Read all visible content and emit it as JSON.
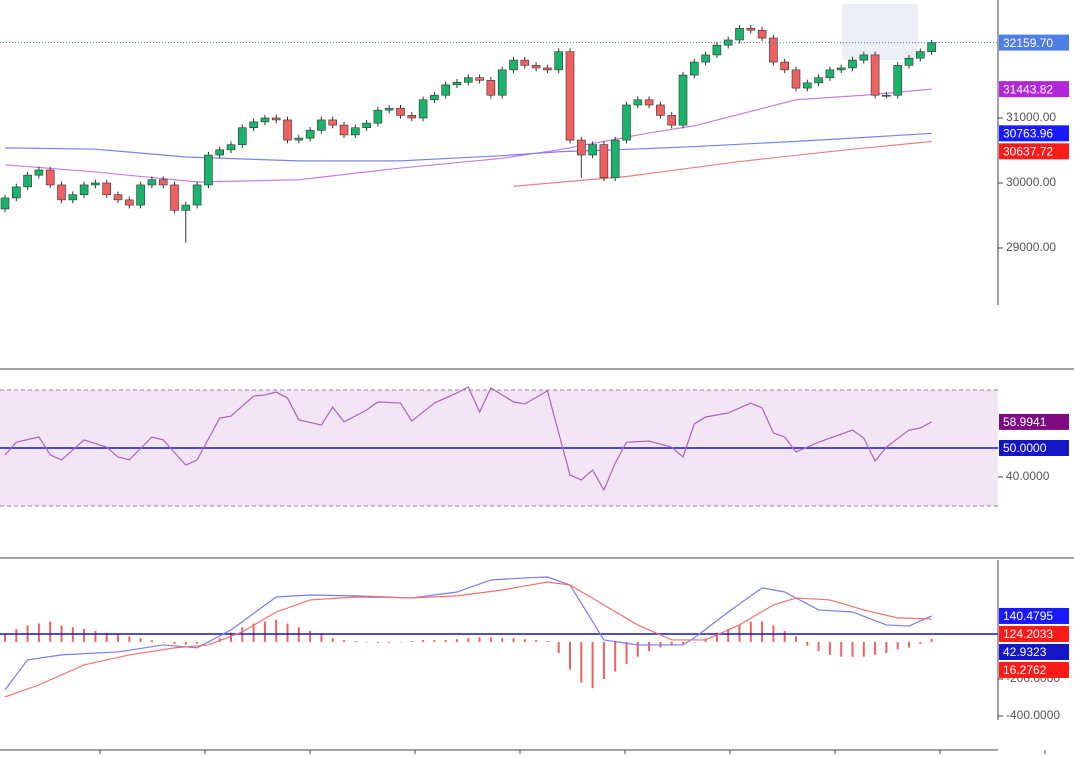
{
  "chart_data": [
    {
      "type": "candlestick",
      "open": [
        29600,
        29770,
        29940,
        30120,
        30200,
        29970,
        29740,
        29820,
        29970,
        30000,
        29820,
        29740,
        29660,
        29970,
        30050,
        29970,
        29580,
        29660,
        29970,
        30430,
        30510,
        30590,
        30850,
        30940,
        31000,
        30970,
        30660,
        30690,
        30810,
        30970,
        30890,
        30740,
        30850,
        30920,
        31120,
        31150,
        31040,
        31000,
        31280,
        31350,
        31510,
        31550,
        31620,
        31580,
        31350,
        31740,
        31890,
        31810,
        31770,
        31740,
        32020,
        30660,
        30430,
        30590,
        30080,
        30660,
        31200,
        31280,
        31200,
        31040,
        30890,
        31660,
        31860,
        31970,
        32120,
        32200,
        32380,
        32350,
        32230,
        31860,
        31740,
        31460,
        31540,
        31620,
        31740,
        31770,
        31890,
        31970,
        31350,
        31350,
        31810,
        31920,
        32020
      ],
      "high": [
        29820,
        29990,
        30170,
        30250,
        30250,
        30020,
        29870,
        30020,
        30050,
        30050,
        29870,
        29790,
        30020,
        30100,
        30100,
        30020,
        29710,
        30020,
        30480,
        30560,
        30640,
        30900,
        30990,
        31050,
        31050,
        31020,
        30740,
        30860,
        31020,
        31020,
        30940,
        30900,
        30970,
        31170,
        31200,
        31200,
        31090,
        31330,
        31400,
        31560,
        31600,
        31670,
        31670,
        31630,
        31790,
        31940,
        31940,
        31860,
        31820,
        32070,
        32070,
        30710,
        30640,
        30640,
        30710,
        31250,
        31330,
        31330,
        31250,
        31090,
        31710,
        31910,
        32020,
        32170,
        32250,
        32430,
        32430,
        32400,
        32280,
        31910,
        31790,
        31590,
        31670,
        31790,
        31820,
        31940,
        32020,
        32020,
        31400,
        31860,
        31970,
        32070,
        32200
      ],
      "low": [
        29550,
        29720,
        29890,
        30070,
        29920,
        29690,
        29690,
        29770,
        29920,
        29770,
        29690,
        29610,
        29610,
        29920,
        29920,
        29530,
        29080,
        29610,
        29920,
        30380,
        30460,
        30540,
        30800,
        30890,
        30920,
        30610,
        30610,
        30640,
        30760,
        30840,
        30690,
        30690,
        30800,
        30870,
        31070,
        30990,
        30950,
        30950,
        31230,
        31300,
        31460,
        31500,
        31530,
        31300,
        31300,
        31690,
        31760,
        31720,
        31690,
        31690,
        30610,
        30080,
        30380,
        30030,
        30030,
        30610,
        31150,
        31150,
        30990,
        30840,
        30840,
        31610,
        31810,
        31920,
        32070,
        32150,
        32300,
        32180,
        31810,
        31690,
        31410,
        31410,
        31490,
        31570,
        31690,
        31720,
        31840,
        31300,
        31300,
        31300,
        31760,
        31870,
        31970
      ],
      "close": [
        29770,
        29940,
        30120,
        30200,
        29970,
        29740,
        29820,
        29970,
        30000,
        29820,
        29740,
        29660,
        29970,
        30050,
        29970,
        29580,
        29660,
        29970,
        30430,
        30510,
        30590,
        30850,
        30940,
        31000,
        30970,
        30660,
        30690,
        30810,
        30970,
        30890,
        30740,
        30850,
        30920,
        31120,
        31150,
        31040,
        31000,
        31280,
        31350,
        31510,
        31550,
        31620,
        31580,
        31350,
        31740,
        31890,
        31810,
        31770,
        31740,
        32020,
        30660,
        30430,
        30590,
        30080,
        30660,
        31200,
        31280,
        31200,
        31040,
        30890,
        31660,
        31860,
        31970,
        32120,
        32200,
        32380,
        32350,
        32230,
        31860,
        31740,
        31460,
        31540,
        31620,
        31740,
        31770,
        31890,
        31970,
        31350,
        31350,
        31810,
        31920,
        32020,
        32159.7
      ],
      "up_color": "#19b36b",
      "down_color": "#ef6060",
      "last_label": "32159.70",
      "last_color": "#4f7fe6",
      "ylim": [
        28123,
        32815
      ],
      "yticks": [
        {
          "value": 31000,
          "label": "31000.00"
        },
        {
          "value": 30000,
          "label": "30000.00"
        },
        {
          "value": 29000,
          "label": "29000.00"
        }
      ],
      "series": [
        {
          "color": "#c77dea",
          "label_color": "#b026d8",
          "x": [
            0,
            8,
            17,
            26,
            35,
            44,
            49,
            57,
            61,
            70,
            76,
            82
          ],
          "values": [
            30280,
            30170,
            30015,
            30050,
            30230,
            30380,
            30510,
            30770,
            30880,
            31280,
            31350,
            31443.82
          ]
        },
        {
          "color": "#8080f0",
          "label_color": "#1a1aff",
          "x": [
            0,
            8,
            16,
            26,
            35,
            44,
            49,
            57,
            61,
            70,
            76,
            82
          ],
          "values": [
            30540,
            30520,
            30400,
            30340,
            30340,
            30420,
            30480,
            30530,
            30560,
            30640,
            30700,
            30763.96
          ]
        },
        {
          "color": "#f08080",
          "label_color": "#ff1a1a",
          "x": [
            45,
            55,
            65,
            75,
            82
          ],
          "values": [
            29950,
            30100,
            30330,
            30520,
            30637.72
          ]
        }
      ]
    },
    {
      "type": "line",
      "color": "#b05fc4",
      "label_color": "#7e0b80",
      "x": [
        0,
        1,
        3,
        4,
        5,
        7,
        9,
        10,
        11,
        13,
        14,
        16,
        17,
        19,
        20,
        22,
        23,
        24,
        25,
        26,
        28,
        29,
        30,
        32,
        33,
        35,
        36,
        38,
        40,
        41,
        42,
        43,
        45,
        46,
        48,
        50,
        51,
        52,
        53,
        54,
        55,
        57,
        59,
        60,
        61,
        62,
        64,
        66,
        67,
        68,
        69,
        70,
        72,
        75,
        76,
        77,
        78,
        80,
        81,
        82
      ],
      "values": [
        47.6,
        52,
        53.8,
        47.6,
        45.9,
        52.8,
        50.3,
        46.9,
        45.9,
        53.8,
        52.8,
        44.1,
        45.9,
        60.3,
        61,
        67.9,
        68.3,
        69.3,
        67.2,
        59.7,
        57.9,
        64.1,
        59,
        63.1,
        65.9,
        65.5,
        59.3,
        65.5,
        69,
        71,
        62.4,
        70.7,
        65.9,
        65.2,
        69.7,
        40.7,
        39,
        42.4,
        35.5,
        44.8,
        52,
        52.4,
        50.3,
        46.9,
        58.3,
        60.7,
        62.1,
        65.5,
        63.8,
        55.2,
        53.8,
        48.6,
        52,
        56.2,
        53.4,
        45.5,
        50.3,
        56.2,
        56.9,
        58.9941
      ],
      "band": [
        30,
        70
      ],
      "band_color": "#f2e6f4",
      "level": {
        "value": 50,
        "label": "50.0000"
      },
      "level_color": "#1515c8",
      "ylim": [
        13.1,
        76.9
      ],
      "yticks": [
        {
          "value": 40,
          "label": "40.0000"
        }
      ]
    },
    {
      "type": "macd",
      "ylim": [
        -584,
        443
      ],
      "yticks": [
        {
          "value": -200,
          "label": "-200.0000"
        },
        {
          "value": -400,
          "label": "-400.0000"
        }
      ],
      "series": [
        {
          "color": "#7b7bf0",
          "label_color": "#1a1aff",
          "x": [
            0,
            2,
            5,
            10,
            14,
            17,
            20,
            24,
            27,
            31,
            36,
            40,
            43,
            46,
            48,
            50,
            53,
            56,
            60,
            61,
            64,
            67,
            69,
            72,
            75,
            78,
            80,
            82
          ],
          "values": [
            -259,
            -97,
            -70,
            -54,
            -16,
            -32,
            65,
            243,
            254,
            249,
            238,
            270,
            335,
            346,
            351,
            308,
            11,
            -16,
            -16,
            22,
            162,
            292,
            270,
            173,
            162,
            92,
            86,
            140.4795
          ]
        },
        {
          "color": "#f07070",
          "label_color": "#ff1a1a",
          "x": [
            0,
            3,
            7,
            11,
            15,
            18,
            21,
            24,
            27,
            31,
            36,
            40,
            44,
            48,
            50,
            53,
            56,
            59,
            62,
            65,
            68,
            70,
            73,
            76,
            79,
            82
          ],
          "values": [
            -297,
            -232,
            -124,
            -70,
            -32,
            -16,
            54,
            162,
            227,
            243,
            238,
            249,
            281,
            324,
            308,
            200,
            92,
            11,
            11,
            92,
            200,
            238,
            227,
            173,
            130,
            124.2033
          ]
        }
      ],
      "histogram": {
        "color": "#ef6060",
        "label_color": "#ff1a1a",
        "values": [
          40,
          70,
          90,
          100,
          110,
          90,
          80,
          70,
          60,
          50,
          40,
          30,
          20,
          10,
          0,
          -10,
          -15,
          -10,
          -5,
          20,
          50,
          80,
          100,
          110,
          120,
          100,
          80,
          60,
          40,
          20,
          10,
          5,
          0,
          -5,
          -5,
          0,
          5,
          10,
          10,
          10,
          15,
          20,
          25,
          25,
          20,
          20,
          15,
          10,
          5,
          -60,
          -150,
          -220,
          -250,
          -200,
          -160,
          -120,
          -80,
          -50,
          -30,
          -20,
          -10,
          0,
          20,
          50,
          70,
          90,
          110,
          110,
          90,
          60,
          30,
          -20,
          -50,
          -70,
          -80,
          -80,
          -80,
          -70,
          -60,
          -40,
          -30,
          -10,
          16.2762
        ]
      },
      "level": 42.9323,
      "level_color": "#1515c8"
    }
  ]
}
